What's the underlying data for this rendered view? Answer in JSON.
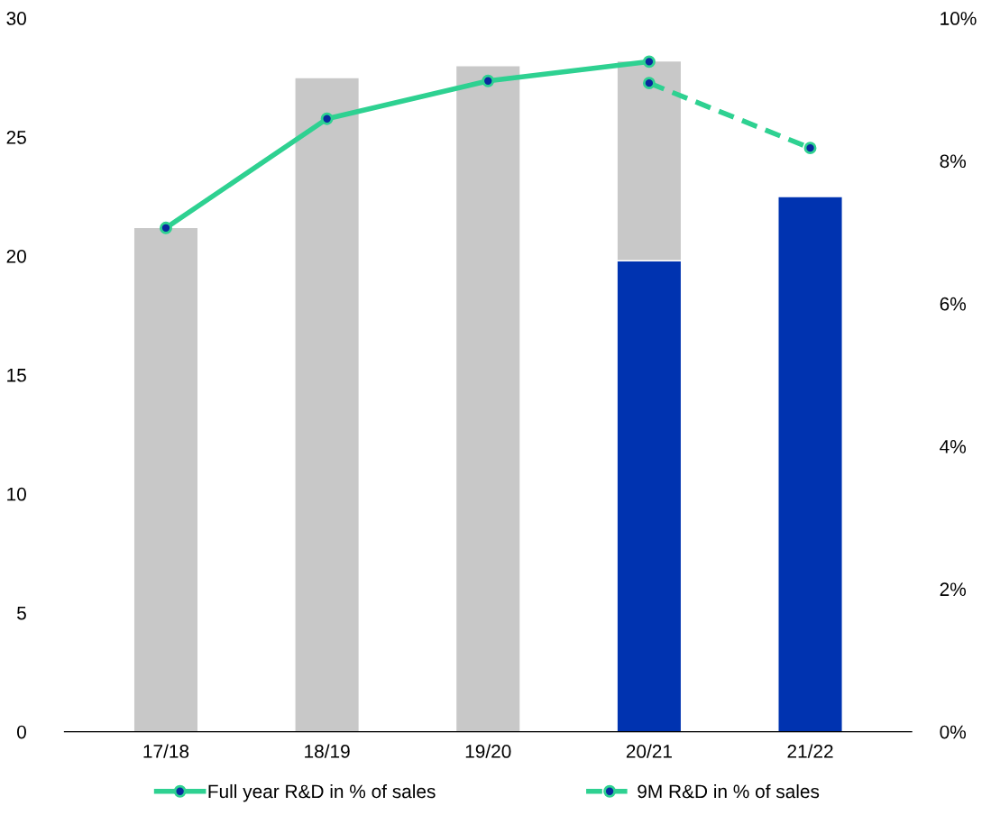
{
  "chart_data": {
    "type": "bar",
    "stacked": true,
    "categories": [
      "17/18",
      "18/19",
      "19/20",
      "20/21",
      "21/22"
    ],
    "series": [
      {
        "color": "#0033b0",
        "values": [
          null,
          null,
          null,
          19.8,
          22.5
        ]
      },
      {
        "color": "#c8c8c8",
        "values": [
          21.2,
          27.5,
          28.0,
          8.4,
          null
        ]
      },
      {
        "type": "line",
        "name": "Full year R&D in % of sales",
        "color": "#2ed191",
        "axis": "y2",
        "marker": "circle",
        "line_style": "solid",
        "values": [
          7.06,
          8.59,
          9.12,
          9.39,
          null
        ]
      },
      {
        "type": "line",
        "name": "9M R&D in % of sales",
        "color": "#2ed191",
        "axis": "y2",
        "marker": "circle",
        "line_style": "dashed",
        "values": [
          null,
          null,
          null,
          9.09,
          8.18
        ]
      }
    ],
    "ylim": [
      0,
      30
    ],
    "yticks": [
      0,
      5,
      10,
      15,
      20,
      25,
      30
    ],
    "y2lim": [
      0,
      10
    ],
    "y2ticks": [
      {
        "value": 0,
        "label": "0%"
      },
      {
        "value": 2,
        "label": "2%"
      },
      {
        "value": 4,
        "label": "4%"
      },
      {
        "value": 6,
        "label": "6%"
      },
      {
        "value": 8,
        "label": "8%"
      },
      {
        "value": 10,
        "label": "10%"
      }
    ],
    "grid": false,
    "legend": "bottom"
  }
}
